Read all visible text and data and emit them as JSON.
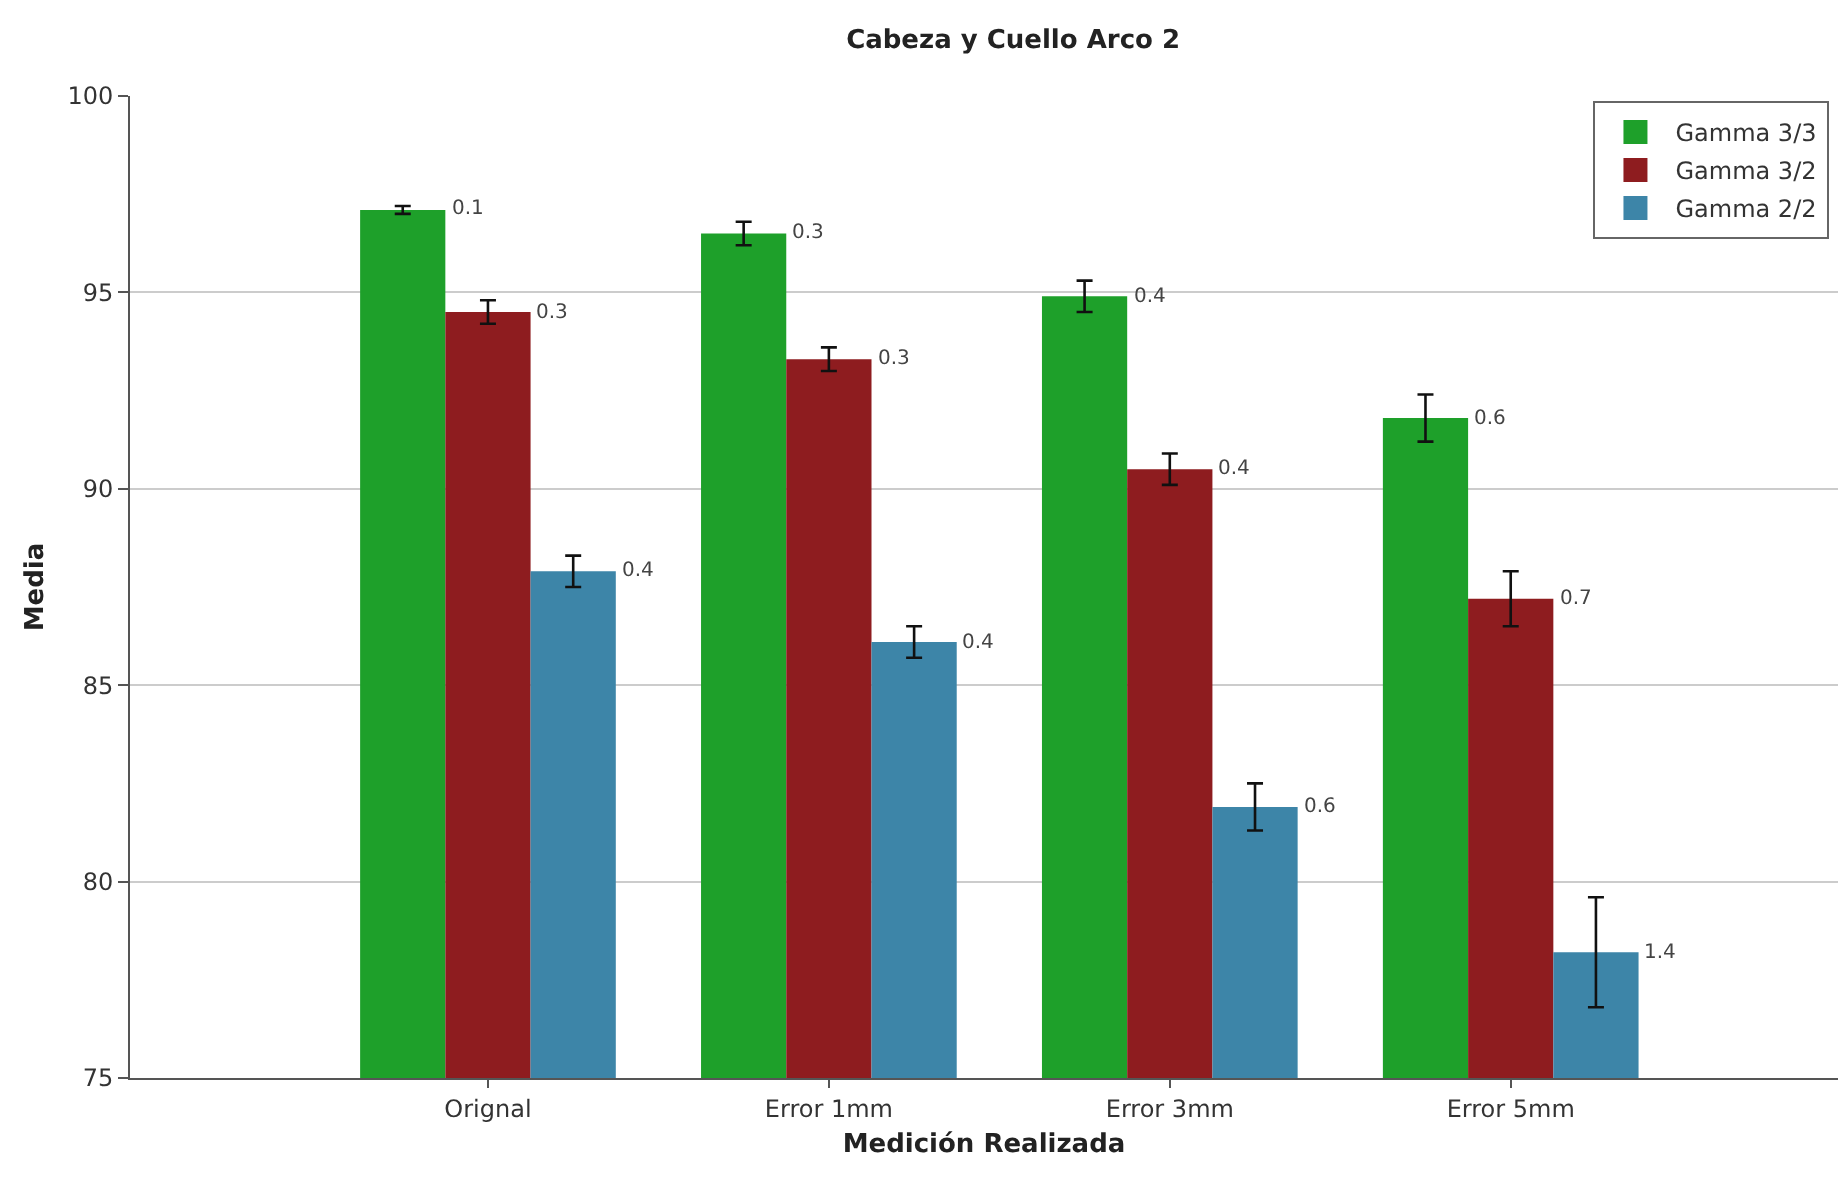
{
  "chart_data": {
    "type": "bar",
    "title": "Cabeza y Cuello Arco 2",
    "xlabel": "Medición Realizada",
    "ylabel": "Media",
    "categories": [
      "Orignal",
      "Error 1mm",
      "Error 3mm",
      "Error 5mm"
    ],
    "series": [
      {
        "name": "Gamma 3/3",
        "color": "#1ea02a",
        "values": [
          97.1,
          96.5,
          94.9,
          91.8
        ],
        "errors": [
          0.1,
          0.3,
          0.4,
          0.6
        ]
      },
      {
        "name": "Gamma 3/2",
        "color": "#8e1c1f",
        "values": [
          94.5,
          93.3,
          90.5,
          87.2
        ],
        "errors": [
          0.3,
          0.3,
          0.4,
          0.7
        ]
      },
      {
        "name": "Gamma 2/2",
        "color": "#3d85a8",
        "values": [
          87.9,
          86.1,
          81.9,
          78.2
        ],
        "errors": [
          0.4,
          0.4,
          0.6,
          1.4
        ]
      }
    ],
    "annotations": [
      "0.1",
      "0.3",
      "0.4",
      "0.6",
      "0.3",
      "0.3",
      "0.4",
      "0.7",
      "0.4",
      "0.4",
      "0.6",
      "1.4"
    ],
    "ylim": [
      75,
      100
    ],
    "yticks": [
      75,
      80,
      85,
      90,
      95,
      100
    ],
    "grid": "y",
    "legend": "top right"
  }
}
